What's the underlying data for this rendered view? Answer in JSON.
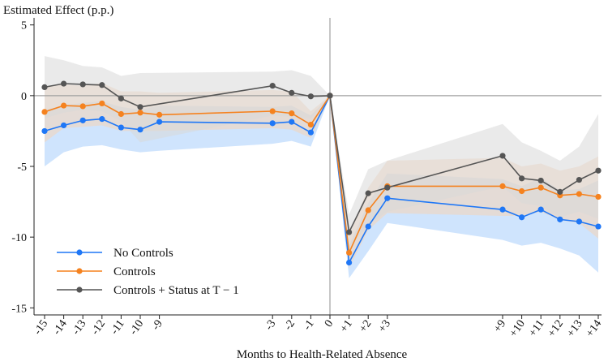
{
  "chart_data": {
    "type": "line",
    "title": "",
    "ylabel": "Estimated Effect (p.p.)",
    "xlabel": "Months to Health-Related Absence",
    "ylim": [
      -15.5,
      5.5
    ],
    "y_ticks": [
      5,
      0,
      -5,
      -10,
      -15
    ],
    "y_tick_labels": [
      "5",
      "0",
      "-5",
      "-10",
      "-15"
    ],
    "x_ticks": [
      -15,
      -14,
      -13,
      -12,
      -11,
      -10,
      -9,
      -3,
      -2,
      -1,
      0,
      1,
      2,
      3,
      9,
      10,
      11,
      12,
      13,
      14
    ],
    "x_tick_labels": [
      "-15",
      "-14",
      "-13",
      "-12",
      "-11",
      "-10",
      "-9",
      "-3",
      "-2",
      "-1",
      "0",
      "+1",
      "+2",
      "+3",
      "+9",
      "+10",
      "+11",
      "+12",
      "+13",
      "+14"
    ],
    "grid": false,
    "reference_lines": {
      "y": 0,
      "x": 0
    },
    "legend_position": "bottom-left",
    "series": [
      {
        "name": "No Controls",
        "color": "#1f77f6",
        "band_color": "#a8cdfb",
        "x": [
          -15,
          -14,
          -13,
          -12,
          -11,
          -10,
          -9,
          -3,
          -2,
          -1,
          0,
          1,
          2,
          3,
          9,
          10,
          11,
          12,
          13,
          14
        ],
        "values": [
          -2.5,
          -2.1,
          -1.75,
          -1.65,
          -2.25,
          -2.4,
          -1.85,
          -1.95,
          -1.85,
          -2.6,
          0,
          -11.8,
          -9.25,
          -7.25,
          -8.05,
          -8.6,
          -8.05,
          -8.75,
          -8.9,
          -9.25
        ],
        "lower": [
          -5.0,
          -4.0,
          -3.6,
          -3.5,
          -3.8,
          -4.0,
          -3.9,
          -3.4,
          -3.2,
          -3.6,
          0,
          -12.9,
          -11.0,
          -9.0,
          -10.2,
          -10.6,
          -10.4,
          -10.8,
          -11.3,
          -12.5
        ],
        "upper": [
          -1.0,
          -0.7,
          -0.5,
          -0.4,
          -0.8,
          -1.0,
          -0.7,
          -0.8,
          -0.7,
          -1.4,
          0,
          -10.6,
          -7.6,
          -5.5,
          -5.9,
          -6.4,
          -5.8,
          -6.7,
          -6.6,
          -6.0
        ]
      },
      {
        "name": "Controls",
        "color": "#f5821f",
        "band_color": "#f6d3b6",
        "x": [
          -15,
          -14,
          -13,
          -12,
          -11,
          -10,
          -9,
          -3,
          -2,
          -1,
          0,
          1,
          2,
          3,
          9,
          10,
          11,
          12,
          13,
          14
        ],
        "values": [
          -1.15,
          -0.7,
          -0.75,
          -0.55,
          -1.3,
          -1.2,
          -1.35,
          -1.1,
          -1.25,
          -2.05,
          0,
          -11.1,
          -8.1,
          -6.4,
          -6.4,
          -6.75,
          -6.5,
          -7.05,
          -6.95,
          -7.15
        ],
        "lower": [
          -3.3,
          -2.3,
          -2.2,
          -2.1,
          -2.5,
          -2.5,
          -2.5,
          -2.3,
          -2.4,
          -3.0,
          0,
          -12.2,
          -9.5,
          -8.3,
          -8.5,
          -8.5,
          -8.2,
          -8.8,
          -9.0,
          -10.1
        ],
        "upper": [
          0.6,
          0.8,
          0.7,
          0.9,
          0.3,
          0.3,
          0.2,
          0.4,
          0.3,
          -1.1,
          0,
          -9.9,
          -6.5,
          -4.6,
          -4.4,
          -5.0,
          -4.8,
          -5.3,
          -5.0,
          -4.3
        ]
      },
      {
        "name": "Controls + Status at T − 1",
        "color": "#555555",
        "band_color": "#d9d9d9",
        "x": [
          -15,
          -14,
          -13,
          -12,
          -11,
          -10,
          -3,
          -2,
          -1,
          0,
          1,
          2,
          3,
          9,
          10,
          11,
          12,
          13,
          14
        ],
        "values": [
          0.6,
          0.85,
          0.8,
          0.75,
          -0.2,
          -0.8,
          0.7,
          0.2,
          -0.05,
          0,
          -9.65,
          -6.9,
          -6.5,
          -4.25,
          -5.85,
          -6.0,
          -6.8,
          -5.95,
          -5.3
        ],
        "lower": [
          -1.6,
          -1.2,
          -1.0,
          -1.1,
          -1.8,
          -3.3,
          -1.4,
          -1.5,
          -1.6,
          0,
          -10.9,
          -9.1,
          -8.2,
          -6.4,
          -7.6,
          -7.8,
          -8.6,
          -8.2,
          -8.7
        ],
        "upper": [
          2.8,
          2.5,
          2.1,
          2.0,
          1.4,
          1.6,
          1.7,
          1.8,
          1.4,
          0,
          -8.4,
          -5.2,
          -4.6,
          -2.0,
          -3.3,
          -3.9,
          -4.6,
          -3.6,
          -1.3
        ]
      }
    ],
    "legend": [
      {
        "label": "No Controls",
        "color": "#1f77f6"
      },
      {
        "label": "Controls",
        "color": "#f5821f"
      },
      {
        "label": "Controls + Status at T − 1",
        "color": "#555555"
      }
    ]
  }
}
